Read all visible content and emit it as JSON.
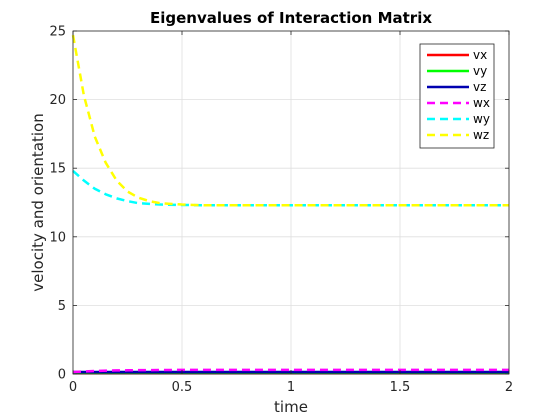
{
  "chart_data": {
    "type": "line",
    "title": "Eigenvalues of Interaction Matrix",
    "xlabel": "time",
    "ylabel": "velocity and orientation",
    "xlim": [
      0,
      2
    ],
    "ylim": [
      0,
      25
    ],
    "xticks": [
      0,
      0.5,
      1,
      1.5,
      2
    ],
    "xtick_labels": [
      "0",
      "0.5",
      "1",
      "1.5",
      "2"
    ],
    "yticks": [
      0,
      5,
      10,
      15,
      20,
      25
    ],
    "ytick_labels": [
      "0",
      "5",
      "10",
      "15",
      "20",
      "25"
    ],
    "grid": true,
    "legend_position": "top-right",
    "series": [
      {
        "name": "vx",
        "color": "#ff0000",
        "style": "solid",
        "x": [
          0,
          2
        ],
        "y": [
          0.05,
          0.05
        ]
      },
      {
        "name": "vy",
        "color": "#00ff00",
        "style": "solid",
        "x": [
          0,
          2
        ],
        "y": [
          0.1,
          0.1
        ]
      },
      {
        "name": "vz",
        "color": "#0000b0",
        "style": "solid",
        "x": [
          0,
          2
        ],
        "y": [
          0.15,
          0.15
        ]
      },
      {
        "name": "wx",
        "color": "#ff00ff",
        "style": "dashed",
        "x": [
          0,
          0.1,
          0.2,
          0.3,
          0.5,
          1,
          1.5,
          2
        ],
        "y": [
          0.15,
          0.22,
          0.26,
          0.28,
          0.3,
          0.3,
          0.3,
          0.3
        ]
      },
      {
        "name": "wy",
        "color": "#00ffff",
        "style": "dashed",
        "x": [
          0,
          0.05,
          0.1,
          0.15,
          0.2,
          0.25,
          0.3,
          0.35,
          0.4,
          0.5,
          0.6,
          0.8,
          1.0,
          1.5,
          2.0
        ],
        "y": [
          14.8,
          14.1,
          13.5,
          13.1,
          12.8,
          12.6,
          12.45,
          12.4,
          12.35,
          12.32,
          12.3,
          12.3,
          12.3,
          12.3,
          12.3
        ]
      },
      {
        "name": "wz",
        "color": "#ffff00",
        "style": "dashed",
        "x": [
          0,
          0.05,
          0.1,
          0.15,
          0.2,
          0.25,
          0.3,
          0.35,
          0.4,
          0.5,
          0.6,
          0.8,
          1.0,
          1.5,
          2.0
        ],
        "y": [
          24.7,
          20.3,
          17.3,
          15.4,
          14.1,
          13.3,
          12.85,
          12.6,
          12.45,
          12.35,
          12.3,
          12.3,
          12.3,
          12.3,
          12.3
        ]
      }
    ]
  }
}
